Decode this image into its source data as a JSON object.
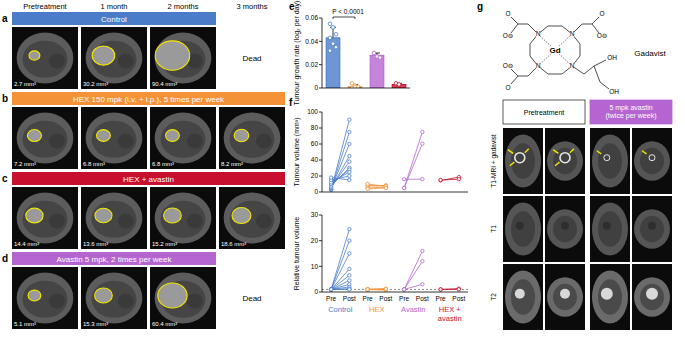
{
  "columns": [
    "Pretreatment",
    "1 month",
    "2 months",
    "3 months"
  ],
  "rows": [
    {
      "label": "a",
      "treatment": "Control",
      "color": "#4a7cc9",
      "volumes": [
        "2.7 mm³",
        "30.2 mm³",
        "90.4 mm³"
      ],
      "outcome": "Dead"
    },
    {
      "label": "b",
      "treatment": "HEX 150 mpk (i.v. + i.p.), 5 times per week",
      "color": "#f39237",
      "volumes": [
        "7.2 mm³",
        "6.8 mm³",
        "6.8 mm³",
        "8.2 mm³"
      ]
    },
    {
      "label": "c",
      "treatment": "HEX + avastin",
      "color": "#c8102e",
      "volumes": [
        "14.4 mm³",
        "13.6 mm³",
        "15.2 mm³",
        "18.6 mm³"
      ]
    },
    {
      "label": "d",
      "treatment": "Avastin 5 mpk, 2 times per week",
      "color": "#b565cf",
      "volumes": [
        "5.1 mm³",
        "15.3 mm³",
        "60.4 mm³"
      ],
      "outcome": "Dead"
    }
  ],
  "panel_labels": [
    "e",
    "f"
  ],
  "chart_data": [
    {
      "type": "bar",
      "ylabel": "Tumour growth rate (log₂ per day)",
      "categories": [
        null,
        null,
        null,
        null
      ],
      "values": [
        0.043,
        0.001,
        0.028,
        0.003
      ],
      "errors": [
        0.009,
        0.002,
        0.002,
        0.001
      ],
      "points": [
        [
          0.055,
          0.052,
          0.046,
          0.043,
          0.038,
          0.035,
          0.032
        ],
        [
          0.004,
          0.002,
          0.001,
          0,
          0.001
        ],
        [
          0.03,
          0.027,
          0.026
        ],
        [
          0.004,
          0.003
        ]
      ],
      "colors": [
        "#4a7cc9",
        "#f39237",
        "#b565cf",
        "#c8102e"
      ],
      "ylim": [
        0,
        0.06
      ],
      "yticks": [
        0,
        0.02,
        0.04,
        0.06
      ],
      "annotation": "P < 0.0001",
      "tick_labels": "y"
    },
    {
      "type": "line",
      "ylabel": "Tumour volume (mm³)",
      "ylim": [
        0,
        100
      ],
      "yticks": [
        0,
        20,
        40,
        60,
        80,
        100
      ],
      "marker": "open-circle",
      "tick_labels": "y",
      "groups": [
        {
          "color": "#4a7cc9",
          "pre": [
            2.7,
            3,
            4,
            5,
            6,
            8,
            10,
            12,
            15,
            18
          ],
          "post": [
            90.4,
            75,
            60,
            45,
            38,
            30.2,
            28,
            25,
            20,
            15
          ]
        },
        {
          "color": "#f39237",
          "pre": [
            7.2,
            5,
            8,
            10,
            4
          ],
          "post": [
            8.2,
            6,
            8,
            7,
            5
          ]
        },
        {
          "color": "#b565cf",
          "pre": [
            5.1,
            5,
            16
          ],
          "post": [
            60.4,
            75,
            16
          ]
        },
        {
          "color": "#c8102e",
          "pre": [
            14.4,
            15
          ],
          "post": [
            18.6,
            16
          ]
        }
      ]
    },
    {
      "type": "line",
      "ylabel": "Relative tumour volume",
      "ylim": [
        0,
        30
      ],
      "yticks": [
        0,
        10,
        20,
        30
      ],
      "marker": "open-circle",
      "reference": 1,
      "line_style": "dashed",
      "categories": [
        "Pre",
        "Post",
        "Pre",
        "Post",
        "Pre",
        "Post",
        "Pre",
        "Post"
      ],
      "groups": [
        {
          "name": "Control",
          "color": "#4a7cc9",
          "pre": [
            1,
            1,
            1,
            1,
            1,
            1,
            1,
            1,
            1,
            1
          ],
          "post": [
            24.5,
            20,
            15,
            9,
            6.5,
            4.5,
            3,
            2,
            1.3,
            1
          ]
        },
        {
          "name": "HEX",
          "color": "#f39237",
          "pre": [
            1,
            1,
            1,
            1,
            1
          ],
          "post": [
            1.1,
            1.2,
            1,
            0.7,
            1.25
          ]
        },
        {
          "name": "Avastin",
          "color": "#b565cf",
          "pre": [
            1,
            1,
            1
          ],
          "post": [
            12,
            16,
            3
          ]
        },
        {
          "name": "HEX + avastin",
          "color": "#c8102e",
          "pre": [
            1,
            1
          ],
          "post": [
            1.3,
            1.05
          ]
        }
      ]
    }
  ],
  "panel_g": {
    "label": "g",
    "compound": "Gadavist",
    "atoms": [
      "Gd",
      "N",
      "N",
      "N",
      "N",
      "O",
      "O⊖",
      "O",
      "O⊖",
      "O",
      "O⊖",
      "OH",
      "OH"
    ],
    "columns": [
      "Pretreatment",
      "5 mpk avastin (twice per week)"
    ],
    "column_colors": [
      "#ffffff",
      "#b565cf"
    ],
    "rows": [
      "T1-MRI + gadavist",
      "T1",
      "T2"
    ]
  }
}
